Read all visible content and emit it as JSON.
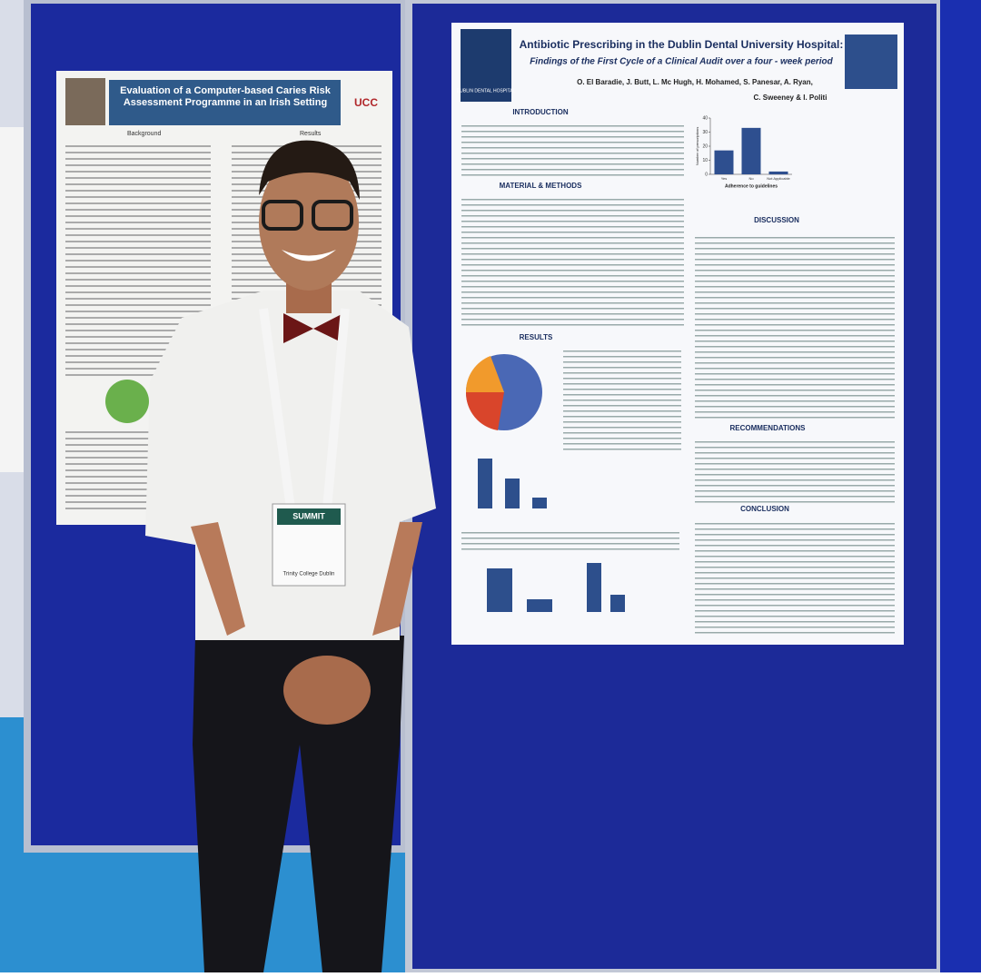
{
  "left_poster": {
    "title": "Evaluation of a Computer-based Caries Risk Assessment Programme in an Irish Setting",
    "logo": "UCC",
    "headings": [
      "Background",
      "Results"
    ]
  },
  "right_poster": {
    "title": "Antibiotic Prescribing in the Dublin Dental University Hospital:",
    "subtitle": "Findings of the First Cycle of a Clinical Audit over a four - week period",
    "authors": [
      "O. El Baradie, J. Butt, L. Mc Hugh, H. Mohamed, S. Panesar, A. Ryan,",
      "C. Sweeney & I. Politi"
    ],
    "logo": "DUBLIN DENTAL HOSPITAL",
    "sections": [
      "INTRODUCTION",
      "MATERIAL & METHODS",
      "RESULTS",
      "DISCUSSION",
      "RECOMMENDATIONS",
      "CONCLUSION"
    ],
    "chart": {
      "type": "bar",
      "x_label": "Adherence to guidelines",
      "y_label": "Number of prescriptions",
      "categories": [
        "Yes",
        "No",
        "Not Applicable"
      ],
      "values": [
        17,
        33,
        2
      ],
      "ylim": [
        0,
        40
      ],
      "yticks": [
        0,
        10,
        20,
        30,
        40
      ]
    }
  },
  "badge": {
    "event": "SUMMIT",
    "org": "Trinity College Dublin"
  }
}
